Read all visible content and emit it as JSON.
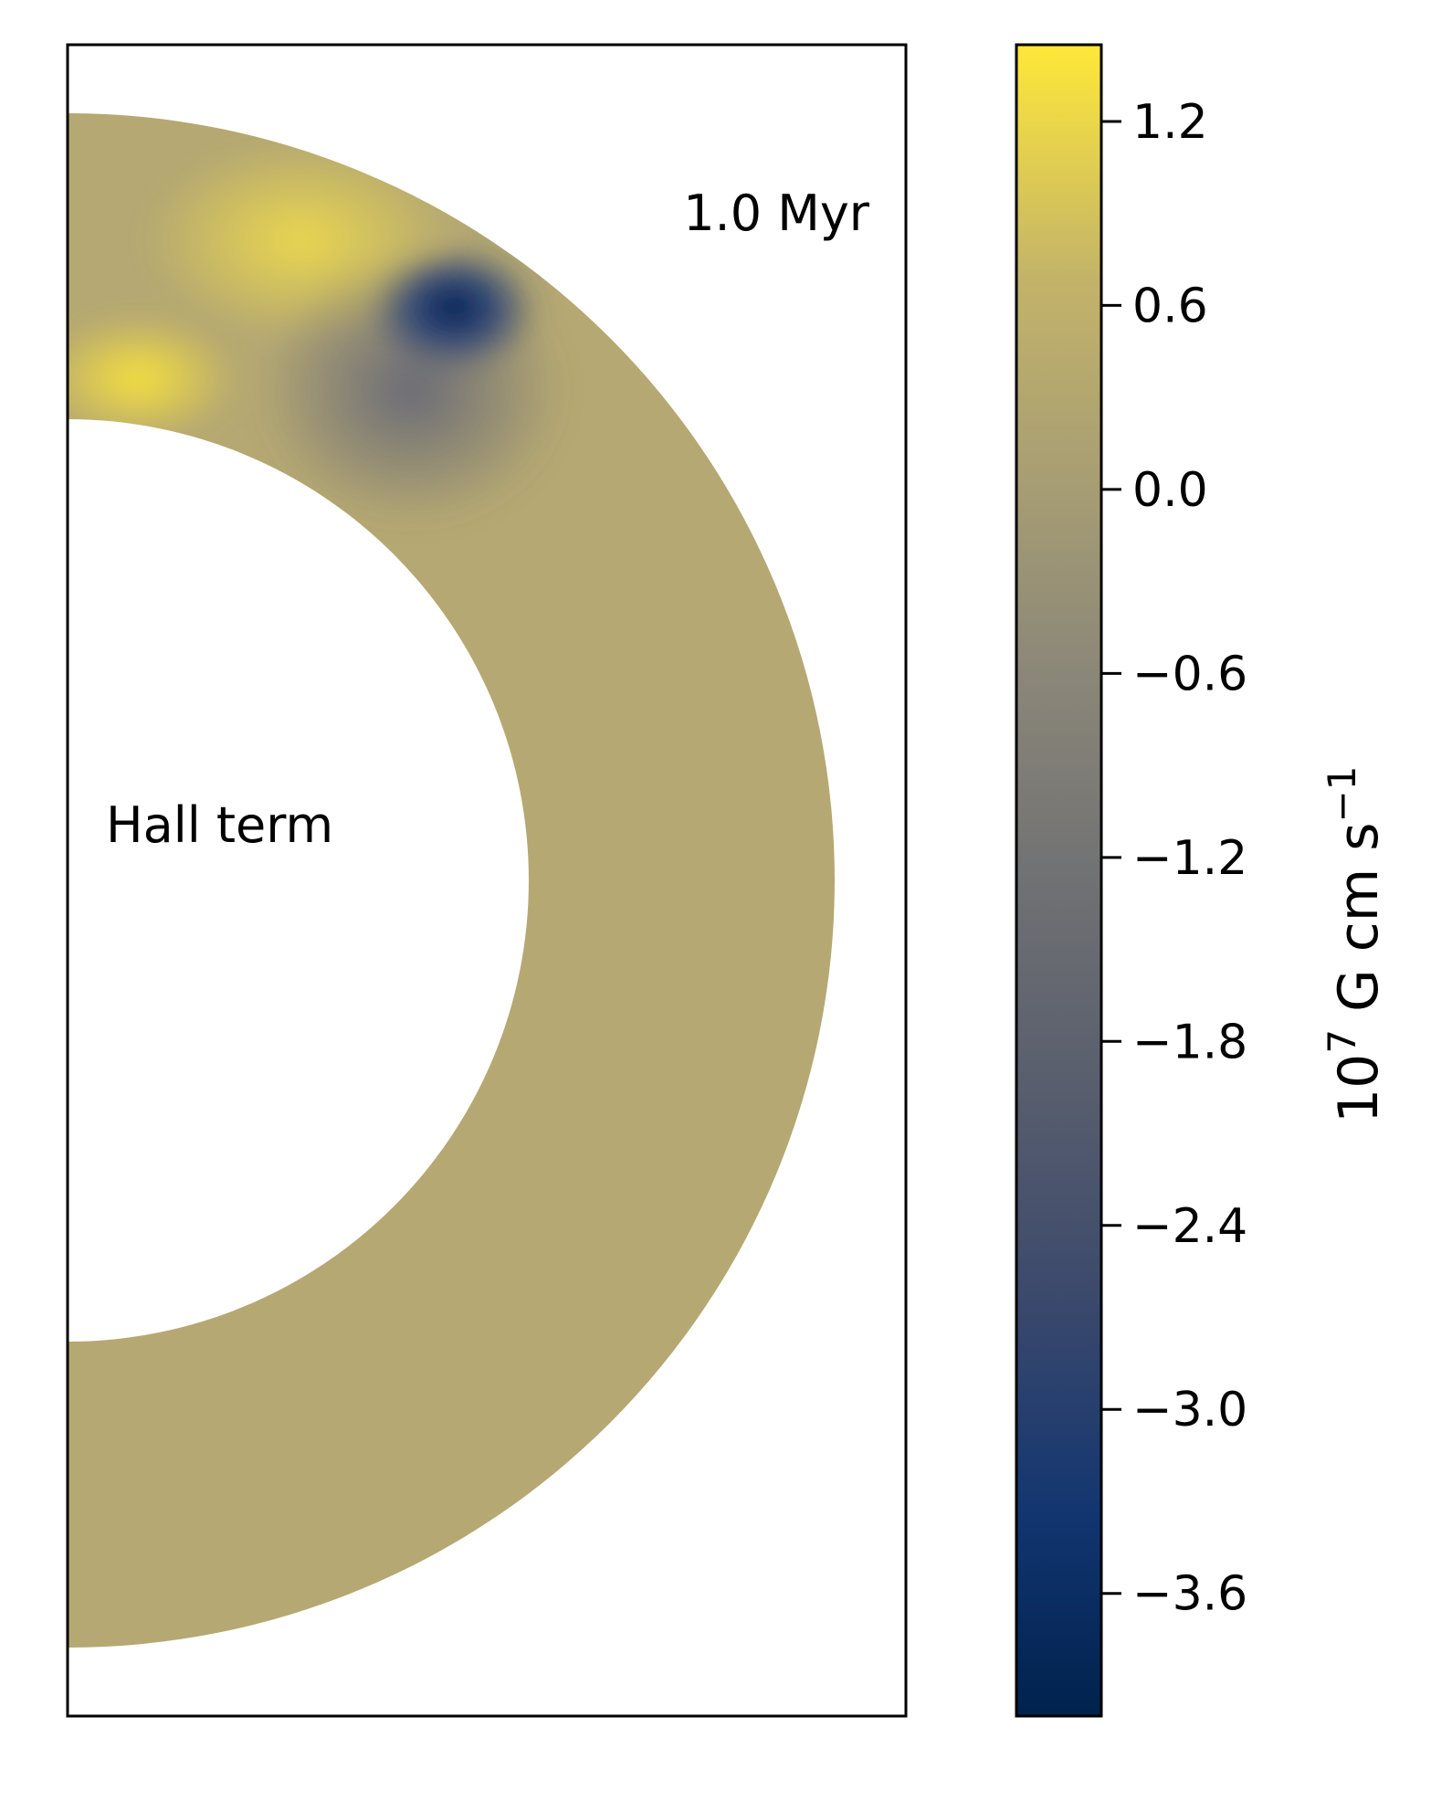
{
  "chart_data": {
    "type": "heatmap",
    "geometry": "meridional half-annulus",
    "panel_label": "Hall term",
    "time_label": "1.0 Myr",
    "background_value": 0.0,
    "features": [
      {
        "name": "positive-lobe-mid",
        "value": 1.2,
        "angle_deg": 70,
        "r_frac": 0.72
      },
      {
        "name": "positive-lobe-inner",
        "value": 1.4,
        "angle_deg": 82,
        "r_frac": 0.15
      },
      {
        "name": "negative-core",
        "value": -4.0,
        "angle_deg": 56,
        "r_frac": 0.75
      },
      {
        "name": "negative-halo",
        "value": -1.6,
        "angle_deg": 55,
        "r_frac": 0.45
      }
    ],
    "colorbar": {
      "colormap": "cividis",
      "vmin": -4.0,
      "vmax": 1.45,
      "ticks": [
        1.2,
        0.6,
        0.0,
        -0.6,
        -1.2,
        -1.8,
        -2.4,
        -3.0,
        -3.6
      ],
      "tick_labels": [
        "1.2",
        "0.6",
        "0.0",
        "−0.6",
        "−1.2",
        "−1.8",
        "−2.4",
        "−3.0",
        "−3.6"
      ],
      "label_main": "10",
      "label_exp": "7",
      "label_unit": " G cm s",
      "label_unit_exp": "−1"
    }
  }
}
